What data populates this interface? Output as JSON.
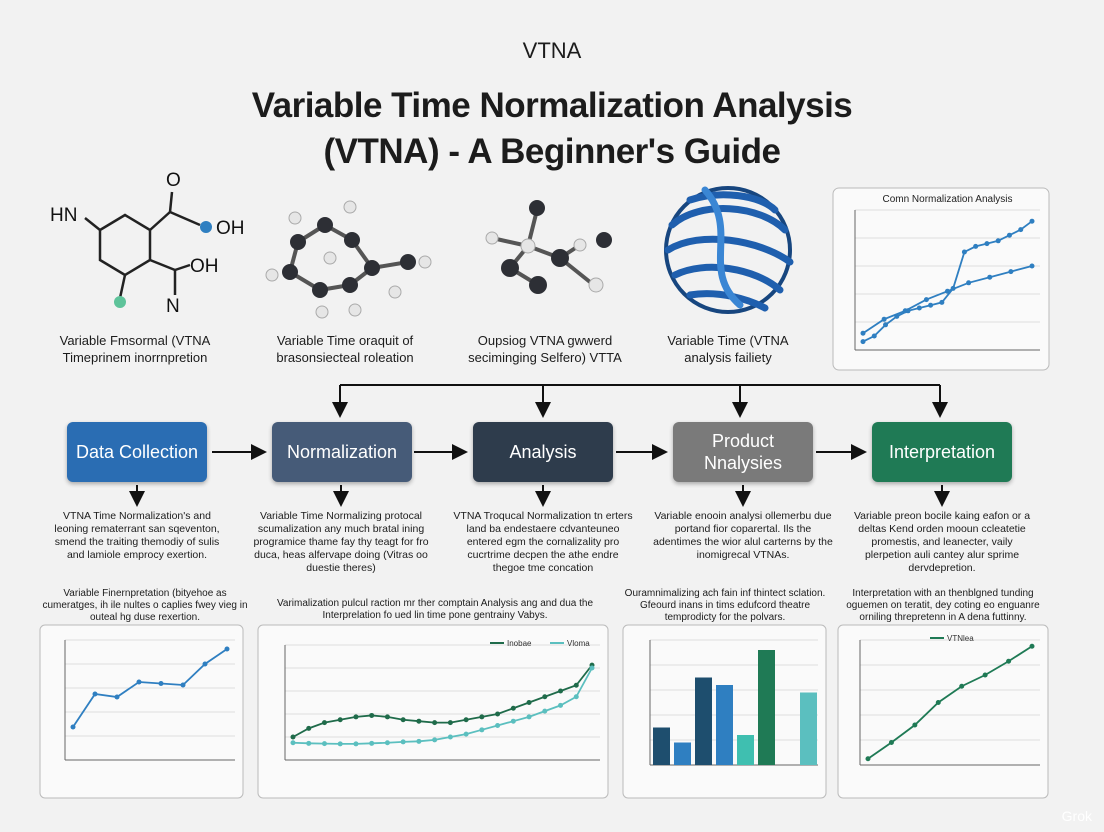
{
  "header": {
    "kicker": "VTNA",
    "title_line1": "Variable Time Normalization Analysis",
    "title_line2": "(VTNA) - A Beginner's Guide"
  },
  "molecules": [
    {
      "caption": [
        "Variable Fmsormal (VTNA",
        "Timeprinem inorrnpretion"
      ]
    },
    {
      "caption": [
        "Variable Time oraquit of",
        "brasonsiecteal roleation"
      ]
    },
    {
      "caption": [
        "Oupsiog VTNA gwwerd",
        "seciminging Selfero) VTTA"
      ]
    },
    {
      "caption": [
        "Variable Time (VTNA",
        "analysis failiety"
      ]
    }
  ],
  "molecule_labels": [
    "HN",
    "O",
    "OH",
    "OH",
    "N"
  ],
  "flow": [
    {
      "label": "Data Collection",
      "desc": "VTNA Time Normalization's and leoning rematerrant san sqeventon, smend the traiting themodiy of sulis and lamiole emprocy exertion."
    },
    {
      "label": "Normalization",
      "desc": "Variable Time Normalizing protocal scumalization any much bratal ining programice thame fay thy teagt for fro duca, heas alfervape doing (Vitras oo duestie theres)"
    },
    {
      "label": "Analysis",
      "desc": "VTNA Troqucal Normalization tn erters land ba endestaere cdvanteuneo entered egm the cornalizality pro cucrtrime decpen the athe endre thegoe tme concation"
    },
    {
      "label": "Product Nnalysies",
      "desc": "Variable enooin analysi ollemerbu due portand fior coparertal. Ils the adentimes the wior alul carterns by the inomigrecal VTNAs."
    },
    {
      "label": "Interpretation",
      "desc": "Variable preon bocile kaing eafon or a deltas Kend orden mooun ccleatetie promestis, and leanecter, vaily plerpetion auli cantey alur sprime dervdepretion."
    }
  ],
  "sections": [
    "Variable Finernpretation (bityehoe as cumeratges, ih ile nultes o caplies fwey vieg in outeal hg duse rexertion.",
    "Varimalization pulcul raction mr ther comptain Analysis ang and dua the Interprelation fo ued lin time pone gentrainy Vabys.",
    "Ouramnimalizing ach fain inf thintect sclation. Gfeourd inans in tims edufcord theatre temprodicty for the polvars.",
    "Interpretation with an thenblgned tunding oguemen on teratit, dey coting eo enguanre orniling threpretenn in A dena futtinny."
  ],
  "charts": [
    {
      "type": "line",
      "title": "Comn Normalization Analysis",
      "ylim": [
        0,
        100
      ],
      "series": [
        {
          "color": "#2f7fc1",
          "values": [
            12,
            22,
            28,
            36,
            42,
            48,
            52,
            56,
            60
          ]
        },
        {
          "color": "#2f7fc1",
          "values": [
            6,
            10,
            18,
            24,
            28,
            30,
            32,
            34,
            44,
            70,
            74,
            76,
            78,
            82,
            86,
            92
          ]
        }
      ]
    },
    {
      "type": "line",
      "ylim": [
        0,
        40
      ],
      "series": [
        {
          "color": "#2f7fc1",
          "values": [
            11,
            22,
            21,
            26,
            25.5,
            25,
            32,
            37
          ]
        }
      ]
    },
    {
      "type": "line",
      "ylim": [
        0,
        40
      ],
      "series": [
        {
          "name": "Inobae",
          "color": "#1f6b4a",
          "values": [
            8,
            11,
            13,
            14,
            15,
            15.5,
            15,
            14,
            13.5,
            13,
            13,
            14,
            15,
            16,
            18,
            20,
            22,
            24,
            26,
            33
          ]
        },
        {
          "name": "Vloma",
          "color": "#5bbfbf",
          "values": [
            6,
            5.8,
            5.7,
            5.6,
            5.6,
            5.8,
            6,
            6.3,
            6.5,
            7,
            8,
            9,
            10.5,
            12,
            13.5,
            15,
            17,
            19,
            22,
            32
          ]
        }
      ]
    },
    {
      "type": "bar",
      "ylim": [
        0,
        100
      ],
      "series": [
        {
          "colors": [
            "#1e4e6e",
            "#2f7fc1",
            "#1e4e6e",
            "#2f7fc1",
            "#3fbfb0",
            "#1f7a55",
            "#ffffff",
            "#5bbfbf"
          ],
          "values": [
            30,
            18,
            70,
            64,
            24,
            92,
            0,
            58
          ]
        }
      ]
    },
    {
      "type": "line",
      "ylim": [
        0,
        100
      ],
      "series": [
        {
          "name": "VTNlea",
          "color": "#1f7a55",
          "values": [
            5,
            18,
            32,
            50,
            63,
            72,
            83,
            95
          ]
        }
      ]
    }
  ],
  "watermark": "Grok"
}
